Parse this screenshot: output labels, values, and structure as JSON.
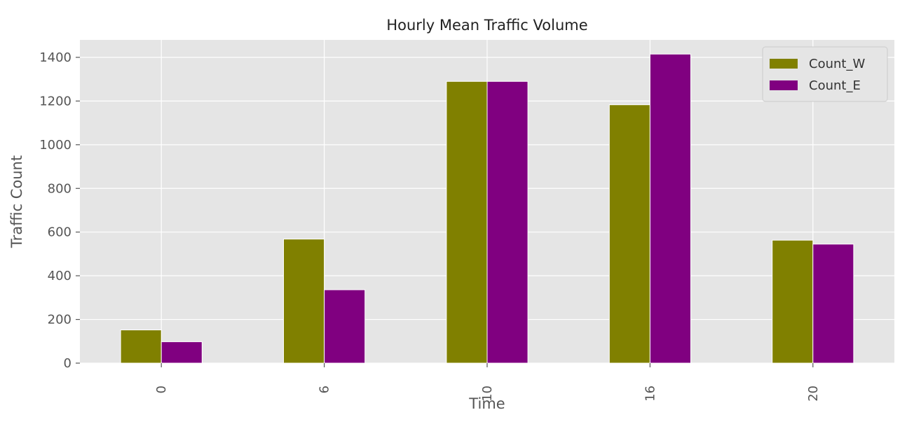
{
  "chart_data": {
    "type": "bar",
    "title": "Hourly Mean Traffic Volume",
    "xlabel": "Time",
    "ylabel": "Traffic Count",
    "categories": [
      "0",
      "6",
      "10",
      "16",
      "20"
    ],
    "series": [
      {
        "name": "Count_W",
        "color": "#808000",
        "values": [
          152,
          568,
          1290,
          1183,
          563
        ]
      },
      {
        "name": "Count_E",
        "color": "#800080",
        "values": [
          98,
          336,
          1290,
          1415,
          545
        ]
      }
    ],
    "ylim": [
      0,
      1480
    ],
    "yticks": [
      0,
      200,
      400,
      600,
      800,
      1000,
      1200,
      1400
    ],
    "grid": true,
    "legend_position": "top-right",
    "xtick_rotation": 90,
    "style": "ggplot",
    "background_color": "#e5e5e5",
    "grid_color": "#ffffff"
  }
}
